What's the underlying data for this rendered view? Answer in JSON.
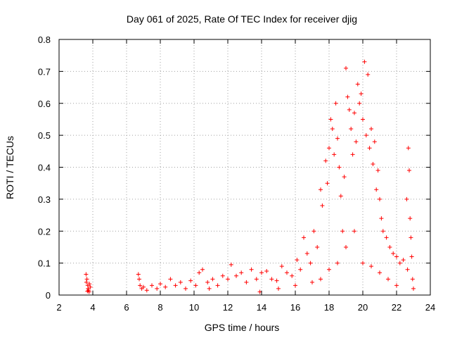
{
  "chart_data": {
    "type": "scatter",
    "title": "Day 061 of 2025, Rate Of TEC Index for receiver djig",
    "xlabel": "GPS time / hours",
    "ylabel": "ROTI / TECUs",
    "xlim": [
      2,
      24
    ],
    "ylim": [
      0,
      0.8
    ],
    "grid": true,
    "marker": "+",
    "color": "#ff0000",
    "x_ticks": [
      2,
      4,
      6,
      8,
      10,
      12,
      14,
      16,
      18,
      20,
      22,
      24
    ],
    "x_tick_labels": [
      "2",
      "4",
      "6",
      "8",
      "10",
      "12",
      "14",
      "16",
      "18",
      "20",
      "22",
      "24"
    ],
    "y_ticks": [
      0,
      0.1,
      0.2,
      0.3,
      0.4,
      0.5,
      0.6,
      0.7,
      0.8
    ],
    "y_tick_labels": [
      "0",
      "0.1",
      "0.2",
      "0.3",
      "0.4",
      "0.5",
      "0.6",
      "0.7",
      "0.8"
    ],
    "series": [
      {
        "name": "ROTI",
        "points": [
          [
            3.6,
            0.065
          ],
          [
            3.62,
            0.04
          ],
          [
            3.65,
            0.05
          ],
          [
            3.7,
            0.03
          ],
          [
            3.72,
            0.02
          ],
          [
            3.75,
            0.015
          ],
          [
            3.78,
            0.01
          ],
          [
            3.8,
            0.035
          ],
          [
            3.85,
            0.025
          ],
          [
            3.68,
            0.012
          ],
          [
            6.7,
            0.065
          ],
          [
            6.75,
            0.05
          ],
          [
            6.8,
            0.03
          ],
          [
            6.9,
            0.02
          ],
          [
            7.0,
            0.025
          ],
          [
            7.2,
            0.015
          ],
          [
            7.5,
            0.03
          ],
          [
            7.8,
            0.02
          ],
          [
            8.0,
            0.035
          ],
          [
            8.3,
            0.025
          ],
          [
            8.6,
            0.05
          ],
          [
            8.9,
            0.03
          ],
          [
            9.2,
            0.04
          ],
          [
            9.5,
            0.02
          ],
          [
            9.8,
            0.045
          ],
          [
            10.1,
            0.03
          ],
          [
            10.3,
            0.07
          ],
          [
            10.5,
            0.08
          ],
          [
            10.8,
            0.04
          ],
          [
            11.1,
            0.05
          ],
          [
            11.4,
            0.03
          ],
          [
            11.7,
            0.06
          ],
          [
            12.0,
            0.05
          ],
          [
            12.2,
            0.095
          ],
          [
            12.5,
            0.06
          ],
          [
            12.8,
            0.07
          ],
          [
            13.1,
            0.04
          ],
          [
            13.4,
            0.08
          ],
          [
            13.7,
            0.05
          ],
          [
            14.0,
            0.07
          ],
          [
            14.3,
            0.075
          ],
          [
            14.6,
            0.05
          ],
          [
            14.9,
            0.045
          ],
          [
            15.2,
            0.09
          ],
          [
            15.5,
            0.07
          ],
          [
            15.8,
            0.06
          ],
          [
            16.1,
            0.11
          ],
          [
            16.3,
            0.08
          ],
          [
            16.5,
            0.18
          ],
          [
            16.7,
            0.13
          ],
          [
            16.9,
            0.1
          ],
          [
            17.1,
            0.2
          ],
          [
            17.3,
            0.15
          ],
          [
            17.5,
            0.33
          ],
          [
            17.6,
            0.28
          ],
          [
            17.8,
            0.42
          ],
          [
            17.9,
            0.35
          ],
          [
            18.0,
            0.46
          ],
          [
            18.1,
            0.55
          ],
          [
            18.2,
            0.52
          ],
          [
            18.3,
            0.44
          ],
          [
            18.4,
            0.6
          ],
          [
            18.5,
            0.49
          ],
          [
            18.6,
            0.4
          ],
          [
            18.7,
            0.31
          ],
          [
            18.8,
            0.2
          ],
          [
            18.9,
            0.37
          ],
          [
            19.0,
            0.71
          ],
          [
            19.1,
            0.62
          ],
          [
            19.2,
            0.58
          ],
          [
            19.3,
            0.52
          ],
          [
            19.4,
            0.44
          ],
          [
            19.5,
            0.57
          ],
          [
            19.6,
            0.48
          ],
          [
            19.7,
            0.66
          ],
          [
            19.8,
            0.6
          ],
          [
            19.9,
            0.63
          ],
          [
            20.0,
            0.55
          ],
          [
            20.1,
            0.73
          ],
          [
            20.2,
            0.5
          ],
          [
            20.3,
            0.69
          ],
          [
            20.4,
            0.46
          ],
          [
            20.5,
            0.52
          ],
          [
            20.6,
            0.41
          ],
          [
            20.7,
            0.48
          ],
          [
            20.8,
            0.33
          ],
          [
            20.9,
            0.39
          ],
          [
            21.0,
            0.3
          ],
          [
            21.1,
            0.24
          ],
          [
            21.2,
            0.2
          ],
          [
            21.4,
            0.18
          ],
          [
            21.6,
            0.15
          ],
          [
            21.8,
            0.13
          ],
          [
            22.0,
            0.12
          ],
          [
            22.2,
            0.1
          ],
          [
            22.4,
            0.11
          ],
          [
            22.6,
            0.3
          ],
          [
            22.7,
            0.46
          ],
          [
            22.75,
            0.39
          ],
          [
            22.8,
            0.24
          ],
          [
            17.5,
            0.05
          ],
          [
            18.0,
            0.08
          ],
          [
            18.5,
            0.1
          ],
          [
            19.0,
            0.15
          ],
          [
            19.5,
            0.2
          ],
          [
            20.0,
            0.1
          ],
          [
            20.5,
            0.09
          ],
          [
            21.0,
            0.07
          ],
          [
            21.5,
            0.05
          ],
          [
            22.0,
            0.03
          ],
          [
            22.9,
            0.12
          ],
          [
            22.95,
            0.05
          ],
          [
            23.0,
            0.02
          ],
          [
            22.85,
            0.18
          ],
          [
            22.65,
            0.08
          ],
          [
            10.9,
            0.02
          ],
          [
            13.9,
            0.01
          ],
          [
            15.0,
            0.02
          ],
          [
            16.0,
            0.03
          ],
          [
            17.0,
            0.04
          ]
        ]
      }
    ]
  }
}
